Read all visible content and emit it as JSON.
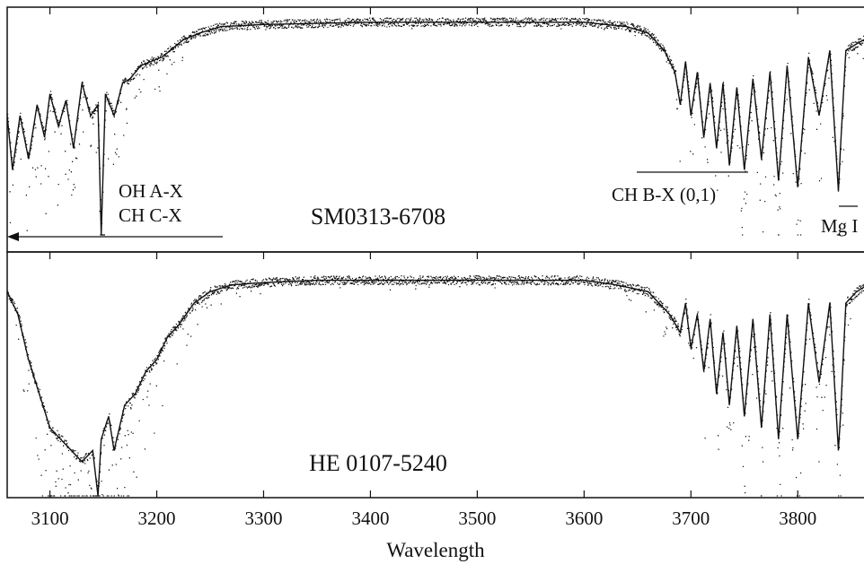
{
  "chart_data": {
    "type": "line",
    "xlabel": "Wavelength",
    "xlim": [
      3060,
      3862
    ],
    "x_ticks": [
      3100,
      3200,
      3300,
      3400,
      3500,
      3600,
      3700,
      3800
    ],
    "panels": [
      {
        "series": [
          {
            "name": "SM0313-6708",
            "x": [
              3060,
              3065,
              3072,
              3080,
              3088,
              3095,
              3100,
              3108,
              3115,
              3122,
              3130,
              3138,
              3145,
              3148,
              3152,
              3160,
              3168,
              3175,
              3185,
              3195,
              3205,
              3215,
              3225,
              3240,
              3260,
              3300,
              3400,
              3500,
              3600,
              3640,
              3660,
              3675,
              3685,
              3690,
              3695,
              3700,
              3706,
              3712,
              3718,
              3724,
              3730,
              3736,
              3743,
              3750,
              3758,
              3766,
              3774,
              3782,
              3790,
              3800,
              3810,
              3820,
              3830,
              3838,
              3840,
              3845,
              3855,
              3862
            ],
            "y": [
              0.55,
              0.3,
              0.55,
              0.35,
              0.6,
              0.45,
              0.65,
              0.5,
              0.62,
              0.4,
              0.7,
              0.55,
              0.6,
              0.0,
              0.65,
              0.55,
              0.7,
              0.72,
              0.78,
              0.8,
              0.82,
              0.86,
              0.9,
              0.93,
              0.96,
              0.97,
              0.98,
              0.98,
              0.98,
              0.96,
              0.93,
              0.85,
              0.75,
              0.6,
              0.8,
              0.55,
              0.75,
              0.45,
              0.7,
              0.4,
              0.7,
              0.32,
              0.68,
              0.3,
              0.72,
              0.35,
              0.75,
              0.25,
              0.78,
              0.22,
              0.82,
              0.55,
              0.85,
              0.2,
              0.4,
              0.85,
              0.88,
              0.9
            ]
          }
        ]
      },
      {
        "series": [
          {
            "name": "HE 0107-5240",
            "x": [
              3060,
              3070,
              3080,
              3090,
              3100,
              3110,
              3120,
              3130,
              3140,
              3145,
              3148,
              3155,
              3160,
              3170,
              3180,
              3190,
              3200,
              3210,
              3220,
              3235,
              3250,
              3270,
              3300,
              3350,
              3400,
              3440,
              3500,
              3550,
              3580,
              3600,
              3630,
              3660,
              3680,
              3690,
              3695,
              3700,
              3706,
              3712,
              3718,
              3724,
              3730,
              3736,
              3743,
              3750,
              3758,
              3766,
              3774,
              3782,
              3790,
              3800,
              3810,
              3820,
              3830,
              3838,
              3840,
              3845,
              3855,
              3862
            ],
            "y": [
              0.9,
              0.8,
              0.6,
              0.45,
              0.3,
              0.25,
              0.2,
              0.15,
              0.2,
              0.0,
              0.25,
              0.35,
              0.2,
              0.4,
              0.45,
              0.55,
              0.6,
              0.7,
              0.75,
              0.85,
              0.9,
              0.93,
              0.94,
              0.95,
              0.95,
              0.95,
              0.95,
              0.95,
              0.95,
              0.95,
              0.93,
              0.9,
              0.8,
              0.72,
              0.85,
              0.65,
              0.8,
              0.55,
              0.78,
              0.45,
              0.72,
              0.4,
              0.75,
              0.35,
              0.78,
              0.3,
              0.8,
              0.25,
              0.8,
              0.25,
              0.85,
              0.5,
              0.85,
              0.2,
              0.35,
              0.85,
              0.9,
              0.92
            ]
          }
        ]
      }
    ],
    "annotations": [
      "OH A-X",
      "CH C-X",
      "CH B-X (0,1)",
      "Mg I"
    ],
    "grid": false
  }
}
